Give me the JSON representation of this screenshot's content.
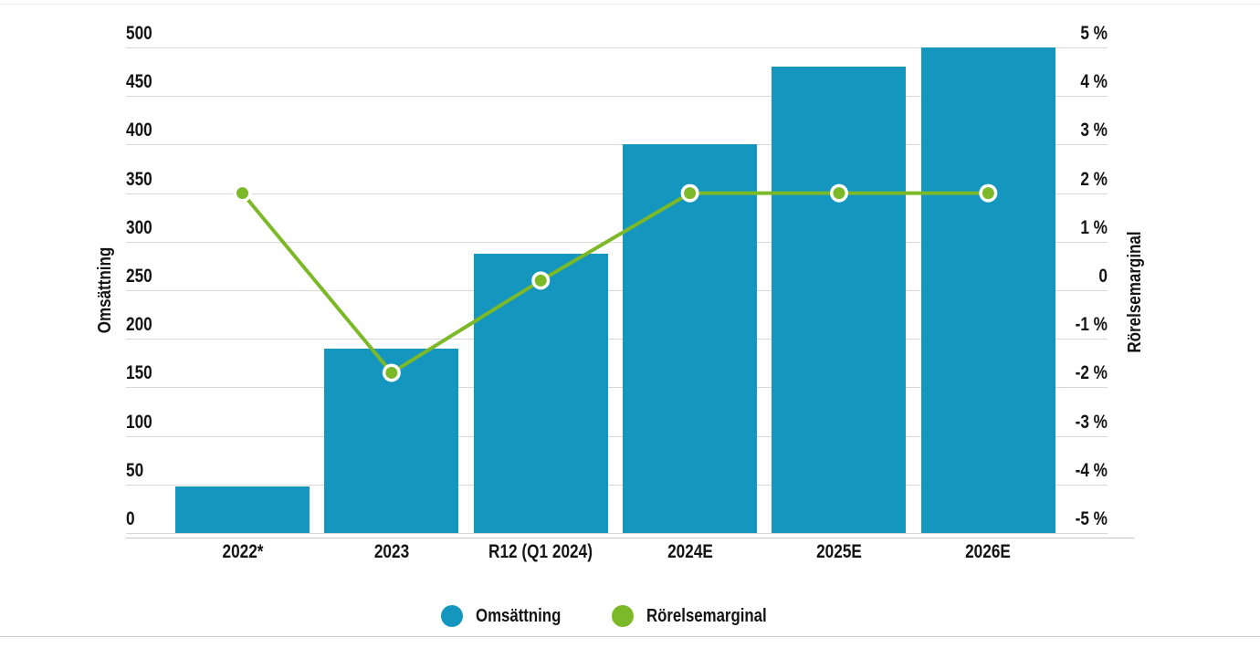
{
  "colors": {
    "bar_teal": "#1496BE",
    "line_green": "#7CB928",
    "marker_ring": "#FFFFFF",
    "gridline": "#D8D8D8",
    "axis_line": "#C6C6C6",
    "text": "#141414",
    "frame_top": "#ECECEC",
    "frame_bottom": "#CFCFCF"
  },
  "chart_data": {
    "type": "combo",
    "categories": [
      "2022*",
      "2023",
      "R12 (Q1 2024)",
      "2024E",
      "2025E",
      "2026E"
    ],
    "series": [
      {
        "name": "Omsättning",
        "type": "bar",
        "axis": "left",
        "color": "#1496BE",
        "values": [
          48,
          190,
          288,
          400,
          480,
          500
        ]
      },
      {
        "name": "Rörelsemarginal",
        "type": "line",
        "axis": "right",
        "color": "#7CB928",
        "marker": "circle-white-ring",
        "values": [
          2,
          -1.7,
          0.2,
          2,
          2,
          2
        ]
      }
    ],
    "left_axis": {
      "label": "Omsättning",
      "min": 0,
      "max": 500,
      "tick_step": 50,
      "tick_labels": [
        "500",
        "450",
        "400",
        "350",
        "300",
        "250",
        "200",
        "150",
        "100",
        "50",
        "0"
      ]
    },
    "right_axis": {
      "label": "Rörelsemarginal",
      "min": -5,
      "max": 5,
      "tick_step": 1,
      "tick_labels": [
        "5 %",
        "4 %",
        "3 %",
        "2 %",
        "1 %",
        "0",
        "-1 %",
        "-2 %",
        "-3 %",
        "-4 %",
        "-5 %"
      ]
    },
    "grid": true,
    "legend_position": "bottom",
    "legend": [
      {
        "label": "Omsättning",
        "color": "#1496BE",
        "shape": "circle"
      },
      {
        "label": "Rörelsemarginal",
        "color": "#7CB928",
        "shape": "circle"
      }
    ],
    "title": ""
  }
}
